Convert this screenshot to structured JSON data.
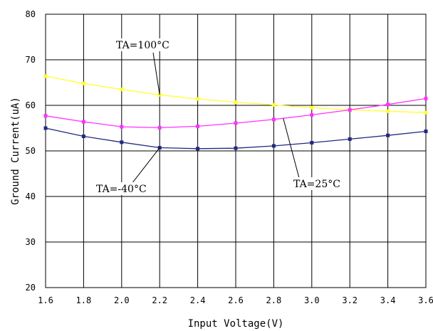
{
  "chart_data": {
    "type": "line",
    "xlabel": "Input Voltage(V)",
    "ylabel": "Ground Current(uA)",
    "xlim": [
      1.6,
      3.6
    ],
    "ylim": [
      20,
      80
    ],
    "x_ticks": [
      "1.6",
      "1.8",
      "2.0",
      "2.2",
      "2.4",
      "2.6",
      "2.8",
      "3.0",
      "3.2",
      "3.4",
      "3.6"
    ],
    "y_ticks": [
      "20",
      "30",
      "40",
      "50",
      "60",
      "70",
      "80"
    ],
    "grid": true,
    "x": [
      1.6,
      1.8,
      2.0,
      2.2,
      2.4,
      2.6,
      2.8,
      3.0,
      3.2,
      3.4,
      3.6
    ],
    "series": [
      {
        "name": "TA=100°C",
        "color": "#ffff33",
        "values": [
          66.4,
          64.8,
          63.5,
          62.3,
          61.4,
          60.7,
          60.1,
          59.5,
          59.0,
          58.7,
          58.4
        ]
      },
      {
        "name": "TA=25°C",
        "color": "#ff33ff",
        "values": [
          57.7,
          56.4,
          55.3,
          55.1,
          55.4,
          56.1,
          56.9,
          57.9,
          59.0,
          60.2,
          61.5
        ]
      },
      {
        "name": "TA=-40°C",
        "color": "#1f2a80",
        "values": [
          55.0,
          53.2,
          51.9,
          50.7,
          50.5,
          50.6,
          51.1,
          51.8,
          52.6,
          53.4,
          54.3
        ]
      }
    ],
    "annotations": [
      {
        "text": "TA=100°C",
        "series": 0
      },
      {
        "text": "TA=25°C",
        "series": 1
      },
      {
        "text": "TA=-40°C",
        "series": 2
      }
    ]
  }
}
